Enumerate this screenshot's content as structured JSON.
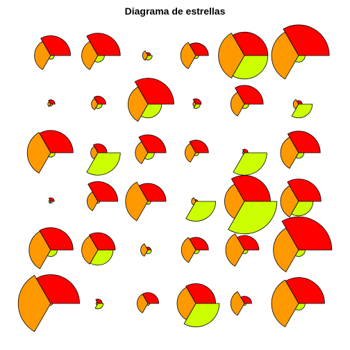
{
  "chart_data": {
    "type": "segment-star",
    "title": "Diagrama de estrellas",
    "variables": 3,
    "grid": {
      "rows": 6,
      "cols": 6
    },
    "series_colors": [
      "#FF0000",
      "#FF9900",
      "#CCFF00"
    ],
    "stroke": "#000000",
    "stars": [
      [
        0.55,
        0.45,
        0.1
      ],
      [
        0.62,
        0.45,
        0.18
      ],
      [
        0.08,
        0.15,
        0.12
      ],
      [
        0.35,
        0.42,
        0.08
      ],
      [
        0.65,
        0.72,
        0.65
      ],
      [
        0.85,
        0.75,
        0.18
      ],
      [
        0.12,
        0.08,
        0.05
      ],
      [
        0.22,
        0.18,
        0.12
      ],
      [
        0.72,
        0.55,
        0.38
      ],
      [
        0.15,
        0.08,
        0.12
      ],
      [
        0.52,
        0.38,
        0.12
      ],
      [
        0.1,
        0.15,
        0.38
      ],
      [
        0.62,
        0.65,
        0.12
      ],
      [
        0.25,
        0.2,
        0.62
      ],
      [
        0.5,
        0.35,
        0.18
      ],
      [
        0.35,
        0.3,
        0.08
      ],
      [
        0.1,
        0.05,
        0.62
      ],
      [
        0.6,
        0.5,
        0.15
      ],
      [
        0.1,
        0.05,
        0.05
      ],
      [
        0.55,
        0.3,
        0.05
      ],
      [
        0.5,
        0.62,
        0.08
      ],
      [
        0.05,
        0.12,
        0.55
      ],
      [
        0.72,
        0.55,
        0.9
      ],
      [
        0.62,
        0.5,
        0.4
      ],
      [
        0.62,
        0.6,
        0.18
      ],
      [
        0.48,
        0.45,
        0.42
      ],
      [
        0.08,
        0.2,
        0.1
      ],
      [
        0.35,
        0.4,
        0.1
      ],
      [
        0.4,
        0.52,
        0.1
      ],
      [
        0.92,
        0.7,
        0.18
      ],
      [
        0.8,
        0.9,
        0.05
      ],
      [
        0.12,
        0.05,
        0.15
      ],
      [
        0.3,
        0.3,
        0.05
      ],
      [
        0.55,
        0.52,
        0.65
      ],
      [
        0.2,
        0.38,
        0.05
      ],
      [
        0.72,
        0.75,
        0.18
      ]
    ]
  }
}
